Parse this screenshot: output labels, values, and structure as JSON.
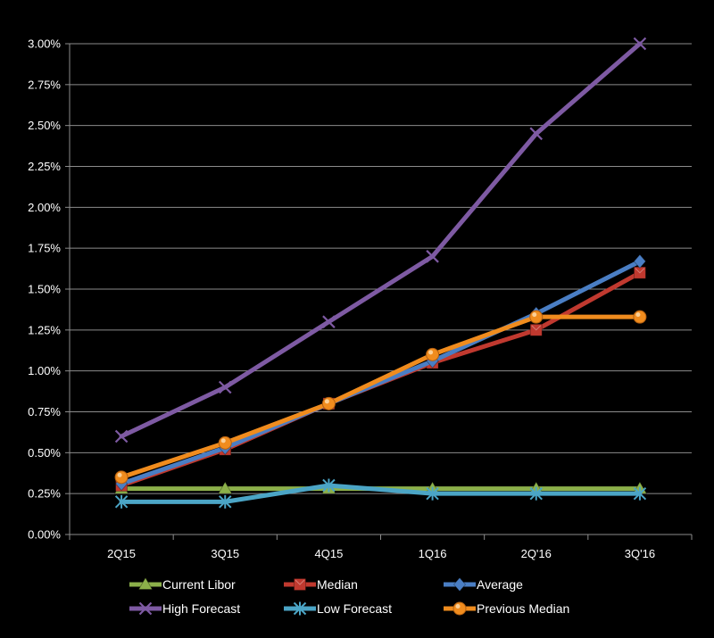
{
  "chart_data": {
    "type": "line",
    "title": "",
    "xlabel": "",
    "ylabel": "",
    "categories": [
      "2Q15",
      "3Q15",
      "4Q15",
      "1Q16",
      "2Q'16",
      "3Q'16"
    ],
    "ylim": [
      0,
      3.0
    ],
    "y_ticks": [
      0,
      0.25,
      0.5,
      0.75,
      1.0,
      1.25,
      1.5,
      1.75,
      2.0,
      2.25,
      2.5,
      2.75,
      3.0
    ],
    "y_tick_labels": [
      "0.00%",
      "0.25%",
      "0.50%",
      "0.75%",
      "1.00%",
      "1.25%",
      "1.50%",
      "1.75%",
      "2.00%",
      "2.25%",
      "2.50%",
      "2.75%",
      "3.00%"
    ],
    "grid": "horizontal",
    "legend_position": "bottom",
    "series": [
      {
        "name": "Current Libor",
        "color": "#8CB04A",
        "marker": "triangle",
        "values": [
          0.28,
          0.28,
          0.28,
          0.28,
          0.28,
          0.28
        ]
      },
      {
        "name": "Median",
        "color": "#C0392F",
        "marker": "square",
        "values": [
          0.3,
          0.52,
          0.8,
          1.05,
          1.25,
          1.6
        ]
      },
      {
        "name": "Average",
        "color": "#4A7EC4",
        "marker": "diamond",
        "values": [
          0.31,
          0.53,
          0.8,
          1.06,
          1.35,
          1.67
        ]
      },
      {
        "name": "High Forecast",
        "color": "#7E5AA3",
        "marker": "x",
        "values": [
          0.6,
          0.9,
          1.3,
          1.7,
          2.45,
          3.0
        ]
      },
      {
        "name": "Low Forecast",
        "color": "#4BA5C6",
        "marker": "star",
        "values": [
          0.2,
          0.2,
          0.3,
          0.25,
          0.25,
          0.25
        ]
      },
      {
        "name": "Previous Median",
        "color": "#F08C1E",
        "marker": "circle",
        "values": [
          0.35,
          0.56,
          0.8,
          1.1,
          1.33,
          1.33
        ]
      }
    ]
  }
}
